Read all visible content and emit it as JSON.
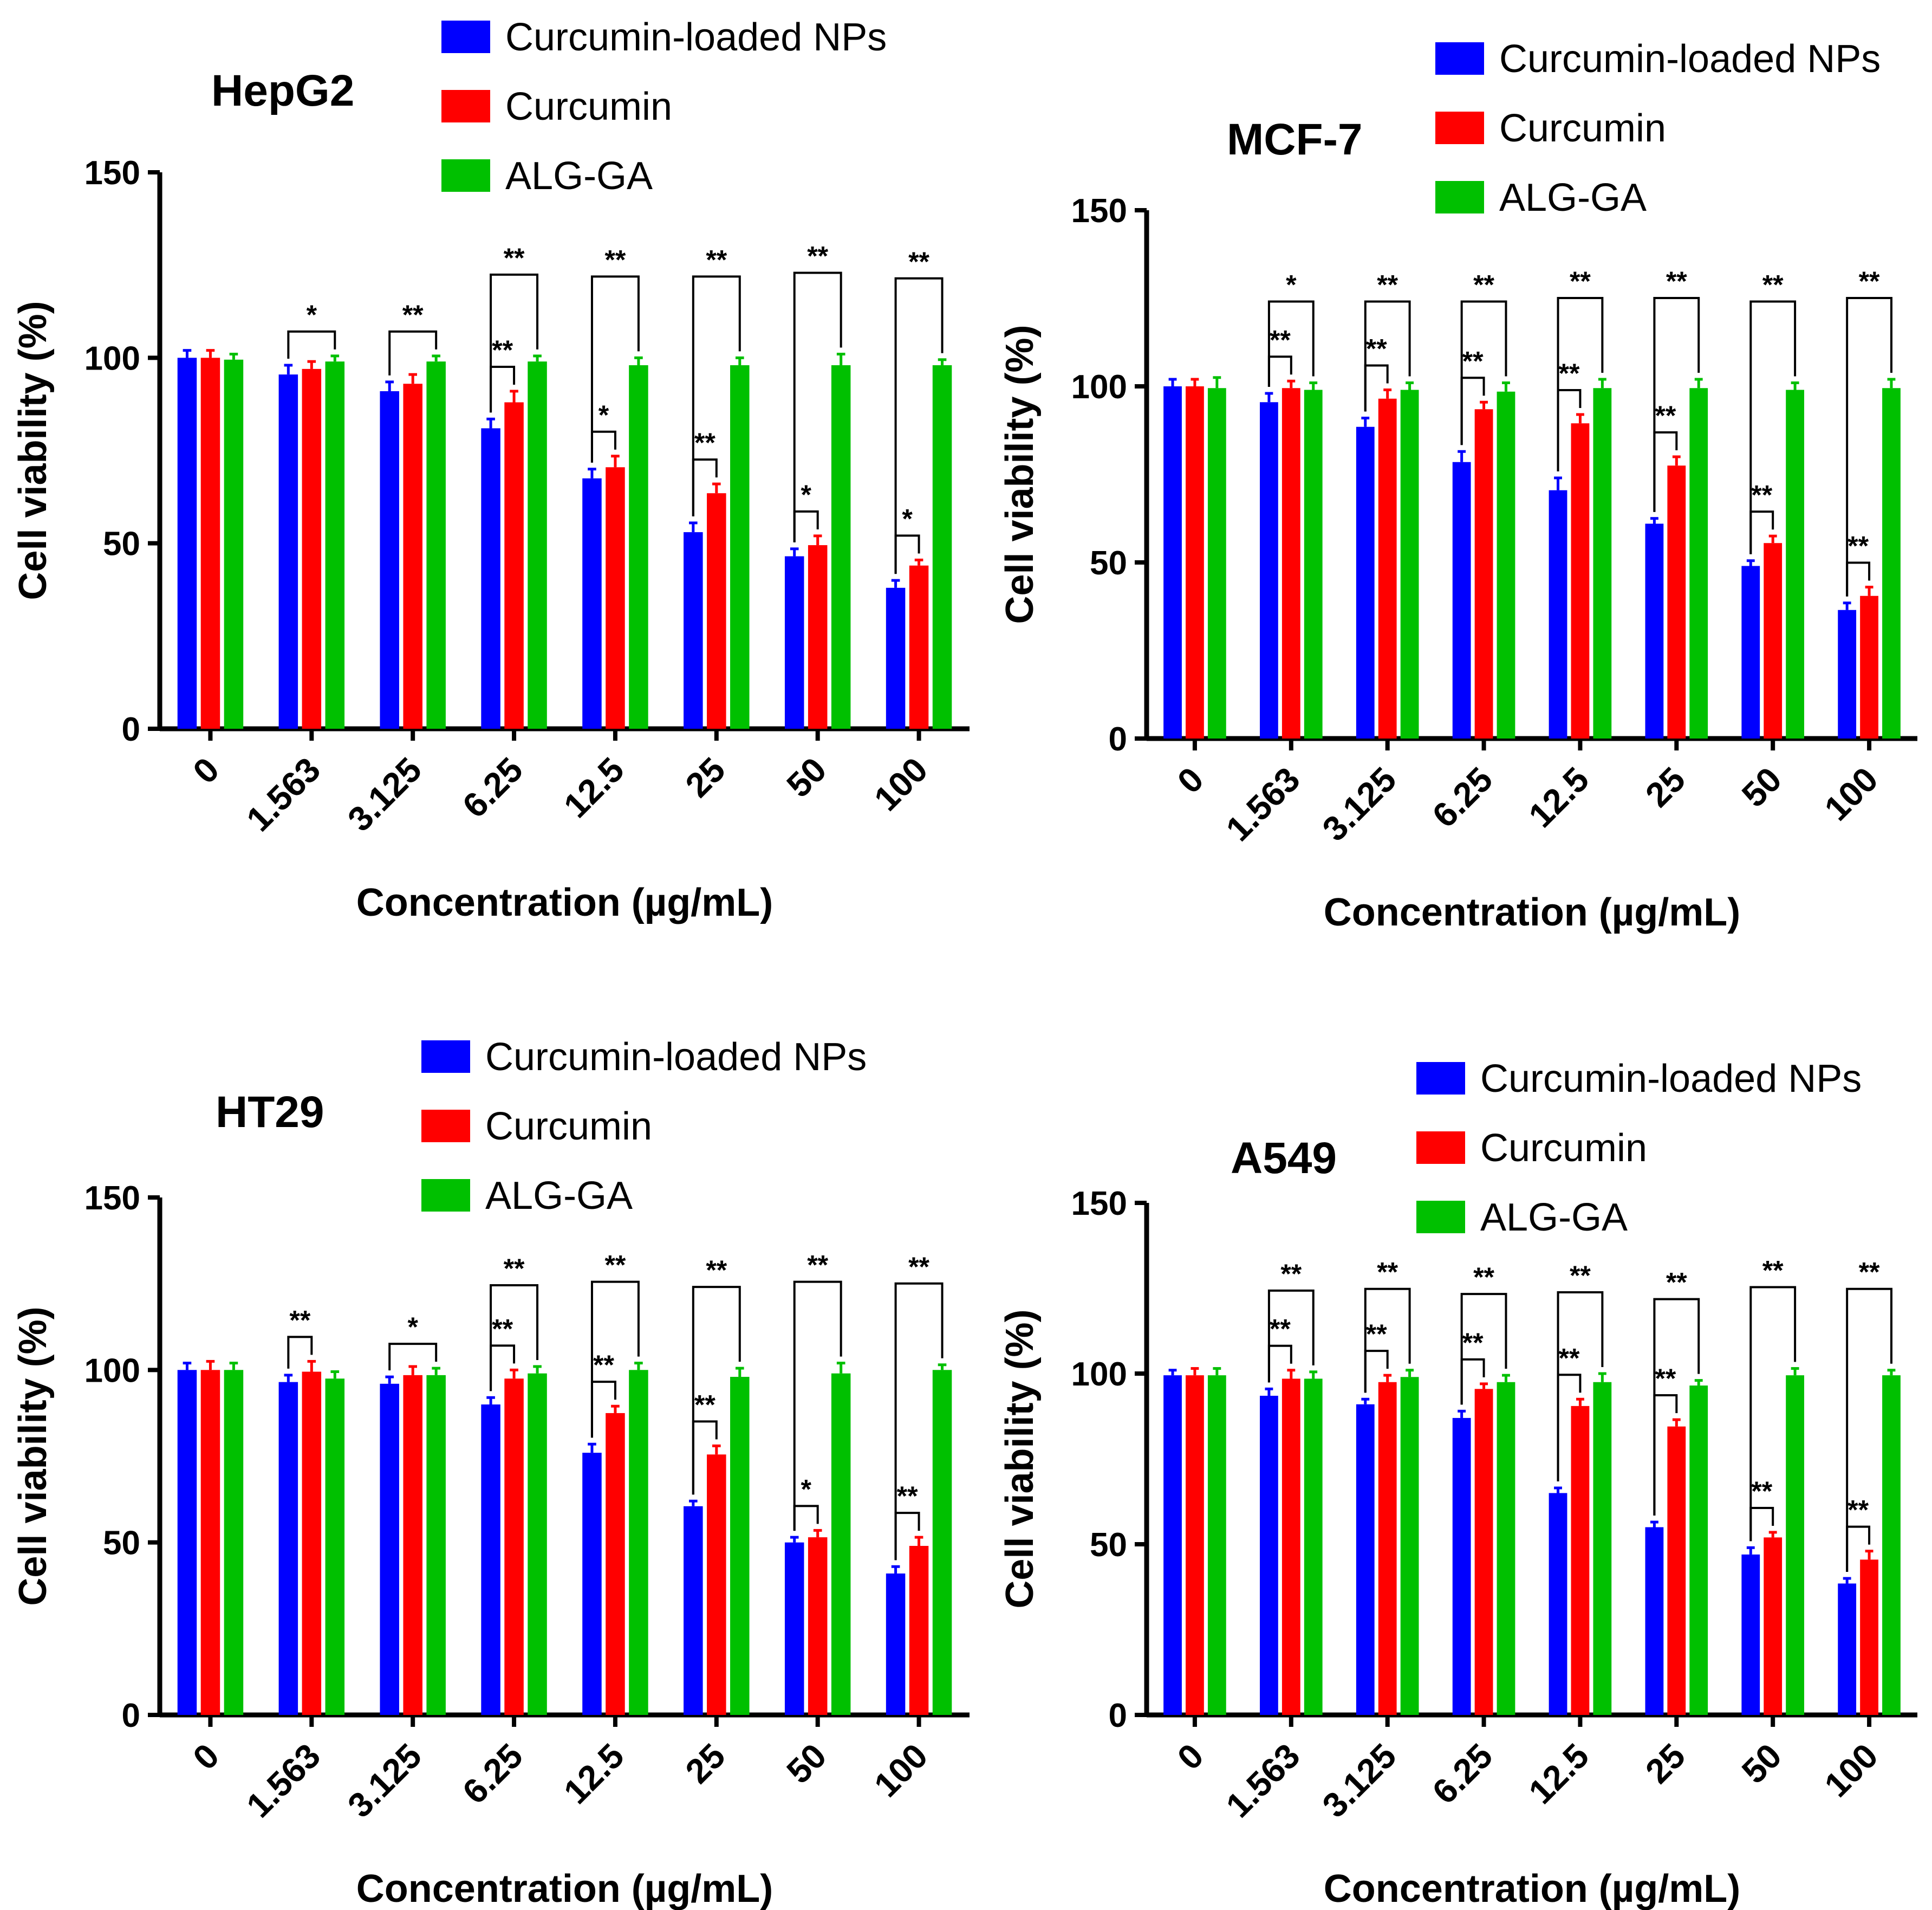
{
  "legend_labels": [
    "Curcumin-loaded NPs",
    "Curcumin",
    "ALG-GA"
  ],
  "colors": {
    "Curcumin-loaded NPs": "#0000ff",
    "Curcumin": "#ff0000",
    "ALG-GA": "#00c000"
  },
  "chart_data": [
    {
      "type": "bar",
      "title": "HepG2",
      "xlabel": "Concentration (µg/mL)",
      "ylabel": "Cell viability (%)",
      "ylim": [
        0,
        150
      ],
      "yticks": [
        "0",
        "50",
        "100",
        "150"
      ],
      "categories": [
        "0",
        "1.563",
        "3.125",
        "6.25",
        "12.5",
        "25",
        "50",
        "100"
      ],
      "legend_position": "top",
      "series": [
        {
          "name": "Curcumin-loaded NPs",
          "values": [
            100,
            95.5,
            91,
            81,
            67.5,
            53,
            46.5,
            38
          ],
          "error": [
            2,
            2.5,
            2.5,
            2.5,
            2.5,
            2.5,
            2,
            2
          ]
        },
        {
          "name": "Curcumin",
          "values": [
            100,
            97,
            93,
            88,
            70.5,
            63.5,
            49.5,
            44
          ],
          "error": [
            2,
            2,
            2.5,
            3,
            3,
            2.5,
            2.5,
            1.5
          ]
        },
        {
          "name": "ALG-GA",
          "values": [
            99.5,
            99,
            99,
            99,
            98,
            98,
            98,
            98
          ],
          "error": [
            1.5,
            1.5,
            1.5,
            1.5,
            2,
            2,
            3,
            1.5
          ]
        }
      ],
      "significance": [
        [],
        [
          {
            "pair": "NP-ALG",
            "label": "*"
          }
        ],
        [
          {
            "pair": "NP-ALG",
            "label": "**"
          }
        ],
        [
          {
            "pair": "NP-CUR",
            "label": "**"
          },
          {
            "pair": "NP-ALG",
            "label": "**"
          }
        ],
        [
          {
            "pair": "NP-CUR",
            "label": "*"
          },
          {
            "pair": "NP-ALG",
            "label": "**"
          }
        ],
        [
          {
            "pair": "NP-CUR",
            "label": "**"
          },
          {
            "pair": "NP-ALG",
            "label": "**"
          }
        ],
        [
          {
            "pair": "NP-CUR",
            "label": "*"
          },
          {
            "pair": "NP-ALG",
            "label": "**"
          }
        ],
        [
          {
            "pair": "NP-CUR",
            "label": "*"
          },
          {
            "pair": "NP-ALG",
            "label": "**"
          }
        ]
      ]
    },
    {
      "type": "bar",
      "title": "MCF-7",
      "xlabel": "Concentration (µg/mL)",
      "ylabel": "Cell viability (%)",
      "ylim": [
        0,
        150
      ],
      "yticks": [
        "0",
        "50",
        "100",
        "150"
      ],
      "categories": [
        "0",
        "1.563",
        "3.125",
        "6.25",
        "12.5",
        "25",
        "50",
        "100"
      ],
      "legend_position": "top-right",
      "series": [
        {
          "name": "Curcumin-loaded NPs",
          "values": [
            100,
            95.5,
            88.5,
            78.5,
            70.5,
            61,
            49,
            36.5
          ],
          "error": [
            2,
            2.5,
            2.5,
            3,
            3.5,
            1.5,
            1.5,
            2
          ]
        },
        {
          "name": "Curcumin",
          "values": [
            100,
            99.5,
            96.5,
            93.5,
            89.5,
            77.5,
            55.5,
            40.5
          ],
          "error": [
            2,
            2,
            2.5,
            2,
            2.5,
            2.5,
            2,
            2.5
          ]
        },
        {
          "name": "ALG-GA",
          "values": [
            99.5,
            99,
            99,
            98.5,
            99.5,
            99.5,
            99,
            99.5
          ],
          "error": [
            3,
            2,
            2,
            2.5,
            2.5,
            2.5,
            2,
            2.5
          ]
        }
      ],
      "significance": [
        [],
        [
          {
            "pair": "NP-CUR",
            "label": "**"
          },
          {
            "pair": "NP-ALG",
            "label": "*"
          }
        ],
        [
          {
            "pair": "NP-CUR",
            "label": "**"
          },
          {
            "pair": "NP-ALG",
            "label": "**"
          }
        ],
        [
          {
            "pair": "NP-CUR",
            "label": "**"
          },
          {
            "pair": "NP-ALG",
            "label": "**"
          }
        ],
        [
          {
            "pair": "NP-CUR",
            "label": "**"
          },
          {
            "pair": "NP-ALG",
            "label": "**"
          }
        ],
        [
          {
            "pair": "NP-CUR",
            "label": "**"
          },
          {
            "pair": "NP-ALG",
            "label": "**"
          }
        ],
        [
          {
            "pair": "NP-CUR",
            "label": "**"
          },
          {
            "pair": "NP-ALG",
            "label": "**"
          }
        ],
        [
          {
            "pair": "NP-CUR",
            "label": "**"
          },
          {
            "pair": "NP-ALG",
            "label": "**"
          }
        ]
      ]
    },
    {
      "type": "bar",
      "title": "HT29",
      "xlabel": "Concentration (µg/mL)",
      "ylabel": "Cell viability (%)",
      "ylim": [
        0,
        150
      ],
      "yticks": [
        "0",
        "50",
        "100",
        "150"
      ],
      "categories": [
        "0",
        "1.563",
        "3.125",
        "6.25",
        "12.5",
        "25",
        "50",
        "100"
      ],
      "legend_position": "top",
      "series": [
        {
          "name": "Curcumin-loaded NPs",
          "values": [
            100,
            96.5,
            96,
            90,
            76,
            60.5,
            50,
            41
          ],
          "error": [
            2,
            2,
            2,
            2,
            2.5,
            1.5,
            1.5,
            2
          ]
        },
        {
          "name": "Curcumin",
          "values": [
            100,
            99.5,
            98.5,
            97.5,
            87.5,
            75.5,
            51.5,
            49
          ],
          "error": [
            2.5,
            3,
            2.5,
            2.5,
            2,
            2.5,
            2,
            2.5
          ]
        },
        {
          "name": "ALG-GA",
          "values": [
            100,
            97.5,
            98.5,
            99,
            100,
            98,
            99,
            100
          ],
          "error": [
            2,
            2,
            2,
            2,
            2,
            2.5,
            3,
            1.5
          ]
        }
      ],
      "significance": [
        [],
        [
          {
            "pair": "NP-CUR",
            "label": "**"
          }
        ],
        [
          {
            "pair": "NP-ALG",
            "label": "*"
          }
        ],
        [
          {
            "pair": "NP-CUR",
            "label": "**"
          },
          {
            "pair": "NP-ALG",
            "label": "**"
          }
        ],
        [
          {
            "pair": "NP-CUR",
            "label": "**"
          },
          {
            "pair": "NP-ALG",
            "label": "**"
          }
        ],
        [
          {
            "pair": "NP-CUR",
            "label": "**"
          },
          {
            "pair": "NP-ALG",
            "label": "**"
          }
        ],
        [
          {
            "pair": "NP-CUR",
            "label": "*"
          },
          {
            "pair": "NP-ALG",
            "label": "**"
          }
        ],
        [
          {
            "pair": "NP-CUR",
            "label": "**"
          },
          {
            "pair": "NP-ALG",
            "label": "**"
          }
        ]
      ]
    },
    {
      "type": "bar",
      "title": "A549",
      "xlabel": "Concentration (µg/mL)",
      "ylabel": "Cell viability (%)",
      "ylim": [
        0,
        150
      ],
      "yticks": [
        "0",
        "50",
        "100",
        "150"
      ],
      "categories": [
        "0",
        "1.563",
        "3.125",
        "6.25",
        "12.5",
        "25",
        "50",
        "100"
      ],
      "legend_position": "top-right",
      "series": [
        {
          "name": "Curcumin-loaded NPs",
          "values": [
            99.5,
            93.5,
            91,
            87,
            65,
            55,
            47,
            38.5
          ],
          "error": [
            1.5,
            2,
            1.5,
            2,
            1.5,
            1.5,
            2,
            1.5
          ]
        },
        {
          "name": "Curcumin",
          "values": [
            99.5,
            98.5,
            97.5,
            95.5,
            90.5,
            84.5,
            52,
            45.5
          ],
          "error": [
            2,
            2.5,
            2,
            1.5,
            2,
            2,
            1.5,
            2.5
          ]
        },
        {
          "name": "ALG-GA",
          "values": [
            99.5,
            98.5,
            99,
            97.5,
            97.5,
            96.5,
            99.5,
            99.5
          ],
          "error": [
            2,
            2,
            2,
            2,
            2.5,
            1.5,
            2,
            1.5
          ]
        }
      ],
      "significance": [
        [],
        [
          {
            "pair": "NP-CUR",
            "label": "**"
          },
          {
            "pair": "NP-ALG",
            "label": "**"
          }
        ],
        [
          {
            "pair": "NP-CUR",
            "label": "**"
          },
          {
            "pair": "NP-ALG",
            "label": "**"
          }
        ],
        [
          {
            "pair": "NP-CUR",
            "label": "**"
          },
          {
            "pair": "NP-ALG",
            "label": "**"
          }
        ],
        [
          {
            "pair": "NP-CUR",
            "label": "**"
          },
          {
            "pair": "NP-ALG",
            "label": "**"
          }
        ],
        [
          {
            "pair": "NP-CUR",
            "label": "**"
          },
          {
            "pair": "NP-ALG",
            "label": "**"
          }
        ],
        [
          {
            "pair": "NP-CUR",
            "label": "**"
          },
          {
            "pair": "NP-ALG",
            "label": "**"
          }
        ],
        [
          {
            "pair": "NP-CUR",
            "label": "**"
          },
          {
            "pair": "NP-ALG",
            "label": "**"
          }
        ]
      ]
    }
  ]
}
